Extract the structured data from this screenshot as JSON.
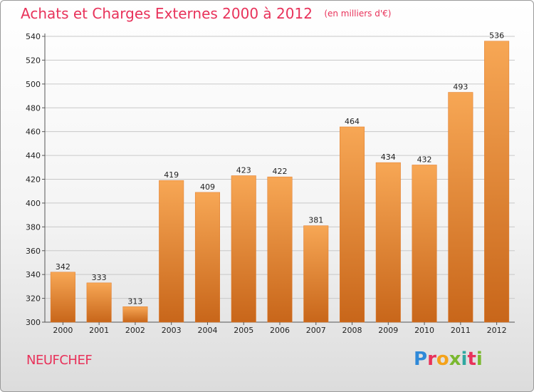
{
  "header": {
    "title": "Achats et Charges Externes 2000 à 2012",
    "unit": "(en milliers d'€)"
  },
  "footer": {
    "city": "NEUFCHEF",
    "logo_letters": [
      "P",
      "r",
      "o",
      "x",
      "i",
      "t",
      "i"
    ]
  },
  "colors": {
    "bar_light": "#f7a755",
    "bar_dark": "#c8661a",
    "title": "#e8325a",
    "grid": "#c8c8c8"
  },
  "chart_data": {
    "type": "bar",
    "title": "Achats et Charges Externes 2000 à 2012",
    "subtitle": "(en milliers d'€)",
    "categories": [
      "2000",
      "2001",
      "2002",
      "2003",
      "2004",
      "2005",
      "2006",
      "2007",
      "2008",
      "2009",
      "2010",
      "2011",
      "2012"
    ],
    "values": [
      342,
      333,
      313,
      419,
      409,
      423,
      422,
      381,
      464,
      434,
      432,
      493,
      536
    ],
    "ylim": [
      300,
      540
    ],
    "yticks": [
      300,
      320,
      340,
      360,
      380,
      400,
      420,
      440,
      460,
      480,
      500,
      520,
      540
    ],
    "grid": true,
    "data_labels": true
  }
}
